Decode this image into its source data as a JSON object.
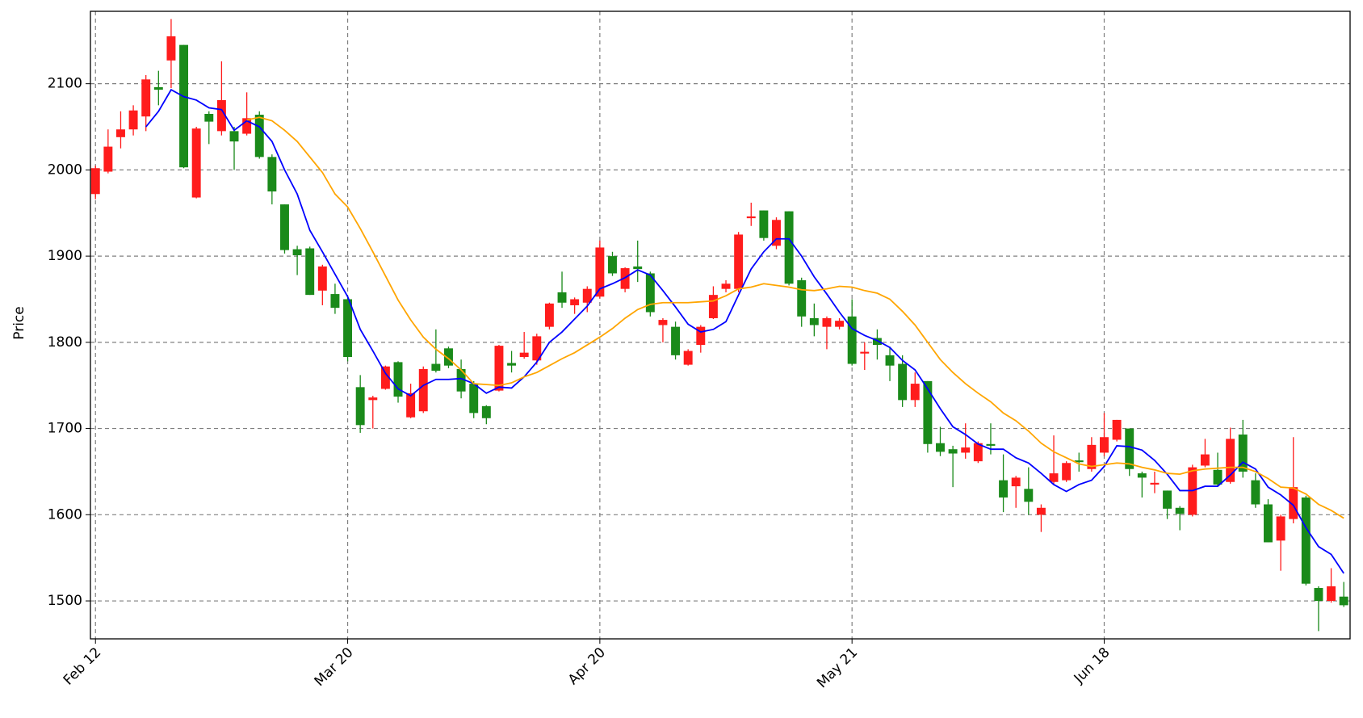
{
  "chart_data": {
    "type": "candlestick",
    "ylabel": "Price",
    "categories": [
      "Feb 12",
      null,
      null,
      null,
      null,
      null,
      null,
      null,
      null,
      null,
      null,
      null,
      null,
      null,
      null,
      null,
      null,
      null,
      null,
      null,
      "Mar 20",
      null,
      null,
      null,
      null,
      null,
      null,
      null,
      null,
      null,
      null,
      null,
      null,
      null,
      null,
      null,
      null,
      null,
      null,
      null,
      "Apr 20",
      null,
      null,
      null,
      null,
      null,
      null,
      null,
      null,
      null,
      null,
      null,
      null,
      null,
      null,
      null,
      null,
      null,
      null,
      null,
      "May 21",
      null,
      null,
      null,
      null,
      null,
      null,
      null,
      null,
      null,
      null,
      null,
      null,
      null,
      null,
      null,
      null,
      null,
      null,
      null,
      "Jun 18",
      null,
      null,
      null,
      null,
      null,
      null,
      null,
      null,
      null,
      null,
      null,
      null,
      null,
      null,
      null,
      null,
      null,
      null,
      null
    ],
    "open": [
      1972,
      1998,
      2038,
      2047,
      2062,
      2096,
      2127,
      2145,
      1968,
      2065,
      2045,
      2045,
      2042,
      2064,
      2015,
      1960,
      1908,
      1909,
      1860,
      1856,
      1850,
      1748,
      1733,
      1746,
      1777,
      1713,
      1720,
      1775,
      1793,
      1769,
      1752,
      1726,
      1744,
      1776,
      1783,
      1779,
      1818,
      1858,
      1843,
      1846,
      1853,
      1900,
      1862,
      1888,
      1880,
      1820,
      1818,
      1774,
      1797,
      1828,
      1862,
      1862,
      1944,
      1953,
      1912,
      1952,
      1872,
      1828,
      1818,
      1818,
      1830,
      1787,
      1805,
      1785,
      1775,
      1733,
      1755,
      1683,
      1676,
      1672,
      1662,
      1682,
      1640,
      1633,
      1630,
      1600,
      1638,
      1640,
      1663,
      1653,
      1672,
      1687,
      1700,
      1648,
      1635,
      1628,
      1608,
      1600,
      1657,
      1652,
      1638,
      1693,
      1640,
      1612,
      1570,
      1595,
      1620,
      1515,
      1500,
      1505
    ],
    "high": [
      2005,
      2047,
      2068,
      2075,
      2110,
      2115,
      2175,
      2145,
      2050,
      2068,
      2126,
      2050,
      2090,
      2068,
      2018,
      1960,
      1912,
      1911,
      1890,
      1868,
      1852,
      1762,
      1738,
      1773,
      1778,
      1752,
      1772,
      1815,
      1795,
      1780,
      1755,
      1727,
      1797,
      1790,
      1812,
      1810,
      1846,
      1882,
      1852,
      1865,
      1918,
      1905,
      1887,
      1918,
      1882,
      1828,
      1824,
      1792,
      1820,
      1865,
      1872,
      1928,
      1962,
      1953,
      1945,
      1952,
      1875,
      1845,
      1830,
      1828,
      1850,
      1800,
      1815,
      1795,
      1785,
      1765,
      1755,
      1702,
      1680,
      1706,
      1685,
      1706,
      1670,
      1645,
      1655,
      1612,
      1692,
      1662,
      1672,
      1690,
      1718,
      1710,
      1700,
      1650,
      1650,
      1628,
      1610,
      1658,
      1688,
      1672,
      1701,
      1710,
      1648,
      1618,
      1600,
      1690,
      1622,
      1517,
      1538,
      1522
    ],
    "low": [
      1966,
      1996,
      2025,
      2040,
      2045,
      2075,
      2095,
      2002,
      1967,
      2030,
      2040,
      2000,
      2040,
      2013,
      1960,
      1903,
      1878,
      1855,
      1843,
      1833,
      1778,
      1695,
      1700,
      1745,
      1730,
      1712,
      1718,
      1765,
      1770,
      1735,
      1712,
      1705,
      1743,
      1765,
      1781,
      1774,
      1815,
      1840,
      1833,
      1835,
      1851,
      1877,
      1858,
      1870,
      1830,
      1800,
      1780,
      1773,
      1788,
      1827,
      1858,
      1858,
      1935,
      1918,
      1908,
      1866,
      1818,
      1807,
      1792,
      1815,
      1773,
      1768,
      1780,
      1755,
      1725,
      1725,
      1672,
      1668,
      1632,
      1665,
      1660,
      1670,
      1603,
      1608,
      1600,
      1580,
      1636,
      1638,
      1650,
      1650,
      1668,
      1685,
      1645,
      1620,
      1625,
      1595,
      1582,
      1598,
      1655,
      1633,
      1636,
      1643,
      1608,
      1568,
      1535,
      1590,
      1518,
      1465,
      1498,
      1493
    ],
    "close": [
      2002,
      2027,
      2047,
      2069,
      2105,
      2093,
      2155,
      2003,
      2048,
      2056,
      2081,
      2033,
      2060,
      2015,
      1975,
      1907,
      1901,
      1855,
      1888,
      1840,
      1783,
      1704,
      1736,
      1772,
      1737,
      1741,
      1769,
      1767,
      1773,
      1743,
      1718,
      1712,
      1796,
      1773,
      1788,
      1807,
      1845,
      1846,
      1850,
      1862,
      1910,
      1880,
      1886,
      1885,
      1835,
      1826,
      1785,
      1790,
      1818,
      1855,
      1868,
      1925,
      1946,
      1921,
      1942,
      1868,
      1830,
      1820,
      1828,
      1825,
      1775,
      1789,
      1797,
      1773,
      1733,
      1752,
      1682,
      1673,
      1671,
      1678,
      1683,
      1680,
      1620,
      1643,
      1615,
      1608,
      1648,
      1660,
      1661,
      1681,
      1690,
      1710,
      1653,
      1643,
      1637,
      1607,
      1601,
      1655,
      1670,
      1635,
      1688,
      1650,
      1612,
      1568,
      1598,
      1632,
      1520,
      1500,
      1517,
      1495
    ],
    "up_color": "#ff1c1c",
    "down_color": "#1a8a1a",
    "lines": [
      {
        "color": "#0000ff",
        "values": [
          null,
          null,
          null,
          null,
          2050,
          2068,
          2093,
          2085,
          2081,
          2072,
          2070,
          2046,
          2057,
          2050,
          2033,
          2000,
          1972,
          1930,
          1905,
          1879,
          1853,
          1815,
          1790,
          1764,
          1746,
          1738,
          1750,
          1757,
          1757,
          1758,
          1752,
          1741,
          1748,
          1747,
          1760,
          1777,
          1800,
          1812,
          1827,
          1842,
          1862,
          1868,
          1875,
          1884,
          1878,
          1860,
          1841,
          1821,
          1812,
          1815,
          1824,
          1855,
          1885,
          1905,
          1920,
          1920,
          1900,
          1876,
          1856,
          1835,
          1816,
          1808,
          1802,
          1794,
          1779,
          1768,
          1746,
          1723,
          1702,
          1693,
          1682,
          1676,
          1676,
          1666,
          1660,
          1648,
          1635,
          1627,
          1635,
          1640,
          1656,
          1680,
          1679,
          1675,
          1663,
          1647,
          1628,
          1628,
          1633,
          1633,
          1646,
          1661,
          1653,
          1632,
          1623,
          1611,
          1585,
          1563,
          1554,
          1532
        ]
      },
      {
        "color": "#ffa500",
        "values": [
          null,
          null,
          null,
          null,
          null,
          null,
          null,
          null,
          null,
          null,
          null,
          null,
          2058,
          2061,
          2057,
          2046,
          2033,
          2015,
          1997,
          1972,
          1957,
          1932,
          1905,
          1877,
          1849,
          1826,
          1806,
          1792,
          1781,
          1768,
          1752,
          1751,
          1750,
          1753,
          1760,
          1765,
          1773,
          1781,
          1788,
          1797,
          1806,
          1816,
          1828,
          1838,
          1844,
          1846,
          1846,
          1846,
          1847,
          1848,
          1854,
          1862,
          1864,
          1868,
          1866,
          1864,
          1861,
          1860,
          1862,
          1865,
          1864,
          1860,
          1857,
          1850,
          1836,
          1820,
          1800,
          1780,
          1765,
          1752,
          1741,
          1731,
          1718,
          1709,
          1697,
          1683,
          1673,
          1666,
          1659,
          1656,
          1658,
          1660,
          1659,
          1655,
          1652,
          1648,
          1647,
          1651,
          1653,
          1654,
          1655,
          1655,
          1650,
          1642,
          1632,
          1631,
          1624,
          1612,
          1605,
          1596
        ]
      }
    ],
    "ylim": [
      1456,
      2184
    ],
    "yticks": [
      1500,
      1600,
      1700,
      1800,
      1900,
      2000,
      2100
    ],
    "grid": true
  }
}
